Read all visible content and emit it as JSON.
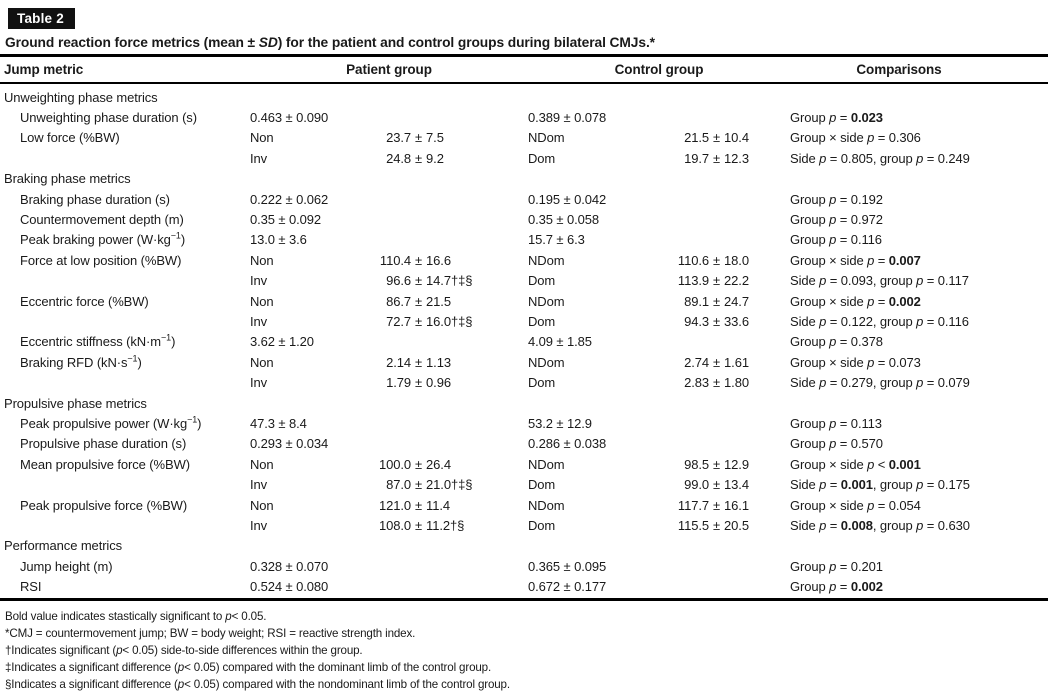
{
  "badge": {
    "label": "Table 2"
  },
  "title": "Ground reaction force metrics (mean ± *SD*) for the patient and control groups during bilateral CMJs.*",
  "header": {
    "jump_metric": "Jump metric",
    "patient_group": "Patient group",
    "control_group": "Control group",
    "comparisons": "Comparisons"
  },
  "rows": [
    {
      "type": "section",
      "label": "Unweighting phase metrics"
    },
    {
      "type": "metric",
      "label": "Unweighting phase duration (s)",
      "p": "0.463 ± 0.090",
      "c": "0.389 ± 0.078",
      "comp": "Group *p* = **0.023**"
    },
    {
      "type": "metric",
      "label": "Low force (%BW)",
      "pside": "Non",
      "pval": "23.7 ± 7.5",
      "cside": "NDom",
      "cval": "21.5 ± 10.4",
      "comp": "Group × side *p* = 0.306"
    },
    {
      "type": "cont",
      "pside": "Inv",
      "pval": "24.8 ± 9.2",
      "cside": "Dom",
      "cval": "19.7 ± 12.3",
      "comp": "Side *p* = 0.805, group *p* = 0.249"
    },
    {
      "type": "section",
      "label": "Braking phase metrics"
    },
    {
      "type": "metric",
      "label": "Braking phase duration (s)",
      "p": "0.222 ± 0.062",
      "c": "0.195 ± 0.042",
      "comp": "Group *p* = 0.192"
    },
    {
      "type": "metric",
      "label": "Countermovement depth (m)",
      "p": "0.35 ± 0.092",
      "c": "0.35 ± 0.058",
      "comp": "Group *p* = 0.972"
    },
    {
      "type": "metric",
      "label": "Peak braking power (W·kg^{−1})",
      "p": "13.0 ± 3.6",
      "c": "15.7 ± 6.3",
      "comp": "Group *p* = 0.116"
    },
    {
      "type": "metric",
      "label": "Force at low position (%BW)",
      "pside": "Non",
      "pval": "110.4 ± 16.6",
      "cside": "NDom",
      "cval": "110.6 ± 18.0",
      "comp": "Group × side *p* = **0.007**"
    },
    {
      "type": "cont",
      "pside": "Inv",
      "pval": "96.6 ± 14.7†‡§",
      "cside": "Dom",
      "cval": "113.9 ± 22.2",
      "comp": "Side *p* = 0.093, group *p* = 0.117"
    },
    {
      "type": "metric",
      "label": "Eccentric force (%BW)",
      "pside": "Non",
      "pval": "86.7 ± 21.5",
      "cside": "NDom",
      "cval": "89.1 ± 24.7",
      "comp": "Group × side *p* = **0.002**"
    },
    {
      "type": "cont",
      "pside": "Inv",
      "pval": "72.7 ± 16.0†‡§",
      "cside": "Dom",
      "cval": "94.3 ± 33.6",
      "comp": "Side *p* = 0.122, group *p* = 0.116"
    },
    {
      "type": "metric",
      "label": "Eccentric stiffness (kN·m^{−1})",
      "p": "3.62 ± 1.20",
      "c": "4.09 ± 1.85",
      "comp": "Group *p* = 0.378"
    },
    {
      "type": "metric",
      "label": "Braking RFD (kN·s^{−1})",
      "pside": "Non",
      "pval": "2.14 ± 1.13",
      "cside": "NDom",
      "cval": "2.74 ± 1.61",
      "comp": "Group × side *p* = 0.073"
    },
    {
      "type": "cont",
      "pside": "Inv",
      "pval": "1.79 ± 0.96",
      "cside": "Dom",
      "cval": "2.83 ± 1.80",
      "comp": "Side *p* = 0.279, group *p* = 0.079"
    },
    {
      "type": "section",
      "label": "Propulsive phase metrics"
    },
    {
      "type": "metric",
      "label": "Peak propulsive power (W·kg^{−1})",
      "p": "47.3 ± 8.4",
      "c": "53.2 ± 12.9",
      "comp": "Group *p* = 0.113"
    },
    {
      "type": "metric",
      "label": "Propulsive phase duration (s)",
      "p": "0.293 ± 0.034",
      "c": "0.286 ± 0.038",
      "comp": "Group *p* = 0.570"
    },
    {
      "type": "metric",
      "label": "Mean propulsive force (%BW)",
      "pside": "Non",
      "pval": "100.0 ± 26.4",
      "cside": "NDom",
      "cval": "98.5 ± 12.9",
      "comp": "Group × side *p* < **0.001**"
    },
    {
      "type": "cont",
      "pside": "Inv",
      "pval": "87.0 ± 21.0†‡§",
      "cside": "Dom",
      "cval": "99.0 ± 13.4",
      "comp": "Side *p* = **0.001**, group *p* = 0.175"
    },
    {
      "type": "metric",
      "label": "Peak propulsive force (%BW)",
      "pside": "Non",
      "pval": "121.0 ± 11.4",
      "cside": "NDom",
      "cval": "117.7 ± 16.1",
      "comp": "Group × side *p* = 0.054"
    },
    {
      "type": "cont",
      "pside": "Inv",
      "pval": "108.0 ± 11.2†§",
      "cside": "Dom",
      "cval": "115.5 ± 20.5",
      "comp": "Side *p* = **0.008**, group *p* = 0.630"
    },
    {
      "type": "section",
      "label": "Performance metrics"
    },
    {
      "type": "metric",
      "label": "Jump height (m)",
      "p": "0.328 ± 0.070",
      "c": "0.365 ± 0.095",
      "comp": "Group *p* = 0.201"
    },
    {
      "type": "metric",
      "label": "RSI",
      "p": "0.524 ± 0.080",
      "c": "0.672 ± 0.177",
      "comp": "Group *p* = **0.002**"
    }
  ],
  "footnotes": [
    "Bold value indicates stastically significant to *p*< 0.05.",
    "*CMJ = countermovement jump; BW = body weight; RSI = reactive strength index.",
    "†Indicates significant (*p*< 0.05) side-to-side differences within the group.",
    "‡Indicates a significant difference (*p*< 0.05) compared with the dominant limb of the control group.",
    "§Indicates a significant difference (*p*< 0.05) compared with the nondominant limb of the control group."
  ],
  "colors": {
    "text": "#1a1a1a",
    "rule": "#000000",
    "badge_bg": "#111111",
    "badge_text": "#ffffff"
  }
}
